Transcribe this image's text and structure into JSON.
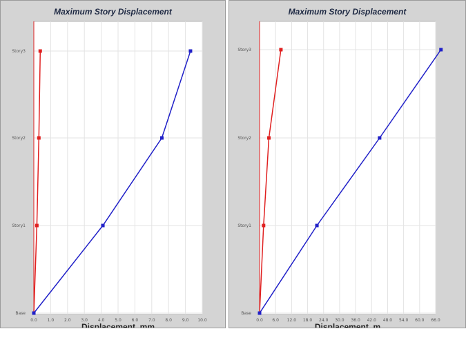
{
  "chart_data": [
    {
      "type": "line",
      "title": "Maximum Story Displacement",
      "xlabel": "Displacement, mm",
      "ylabel": "",
      "categories": [
        "Base",
        "Story1",
        "Story2",
        "Story3"
      ],
      "xlim": [
        0,
        10
      ],
      "x_ticks": [
        "0.0",
        "1.0",
        "2.0",
        "3.0",
        "4.0",
        "5.0",
        "6.0",
        "7.0",
        "8.0",
        "9.0",
        "10.0"
      ],
      "grid": true,
      "series": [
        {
          "color": "#e02020",
          "values": [
            0.0,
            0.18,
            0.3,
            0.38
          ]
        },
        {
          "color": "#2020c8",
          "values": [
            0.0,
            4.1,
            7.6,
            9.3
          ]
        }
      ]
    },
    {
      "type": "line",
      "title": "Maximum Story Displacement",
      "xlabel": "Displacement, m",
      "ylabel": "",
      "categories": [
        "Base",
        "Story1",
        "Story2",
        "Story3"
      ],
      "xlim": [
        0,
        66
      ],
      "x_ticks": [
        "0.0",
        "6.0",
        "12.0",
        "18.0",
        "24.0",
        "30.0",
        "36.0",
        "42.0",
        "48.0",
        "54.0",
        "60.0",
        "66.0"
      ],
      "grid": true,
      "series": [
        {
          "color": "#e02020",
          "values": [
            0.0,
            1.5,
            3.5,
            8.0
          ]
        },
        {
          "color": "#2020c8",
          "values": [
            0.0,
            21.5,
            45.0,
            68.0
          ]
        }
      ]
    }
  ]
}
